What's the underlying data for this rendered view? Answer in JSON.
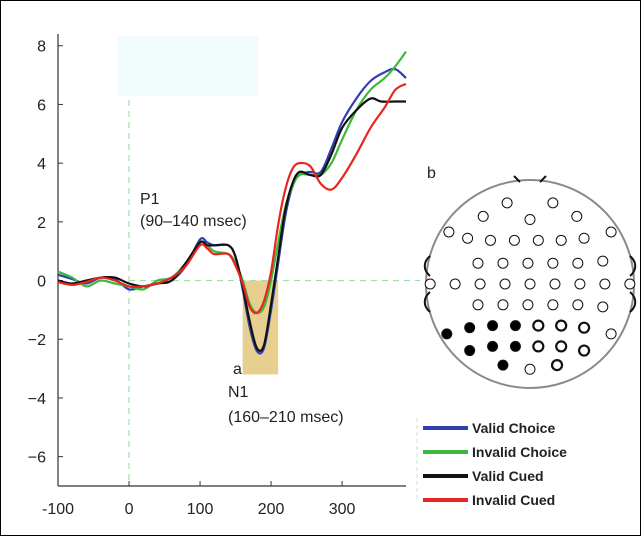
{
  "chart_data": {
    "type": "line",
    "xlim": [
      -100,
      390
    ],
    "ylim": [
      -7,
      8.4
    ],
    "x_ticks": [
      "-100",
      "0",
      "100",
      "200",
      "300"
    ],
    "y_ticks": [
      "8",
      "6",
      "4",
      "2",
      "0",
      "−2",
      "−4",
      "−6"
    ],
    "x_tick_values": [
      -100,
      0,
      100,
      200,
      300
    ],
    "y_tick_values": [
      8,
      6,
      4,
      2,
      0,
      -2,
      -4,
      -6
    ],
    "grid": false,
    "legend_position": "bottom-right",
    "annotations": {
      "p1_label": "P1",
      "p1_window": "(90–140 msec)",
      "n1_label": "N1",
      "n1_window": "(160–210 msec)",
      "panel_a": "a",
      "panel_b": "b"
    },
    "highlight_window": {
      "x": [
        160,
        210
      ],
      "y": [
        -3.2,
        0
      ],
      "color": "#e7cf8f"
    },
    "series": [
      {
        "name": "Valid Choice",
        "color": "#2f3fb0",
        "points": [
          [
            -100,
            0.2
          ],
          [
            -80,
            0.05
          ],
          [
            -60,
            -0.1
          ],
          [
            -40,
            0.1
          ],
          [
            -20,
            0.05
          ],
          [
            0,
            -0.3
          ],
          [
            20,
            -0.2
          ],
          [
            40,
            -0.1
          ],
          [
            60,
            0.0
          ],
          [
            80,
            0.5
          ],
          [
            100,
            1.4
          ],
          [
            110,
            1.3
          ],
          [
            120,
            1.2
          ],
          [
            140,
            1.2
          ],
          [
            150,
            0.8
          ],
          [
            160,
            -0.3
          ],
          [
            170,
            -1.6
          ],
          [
            180,
            -2.4
          ],
          [
            190,
            -2.3
          ],
          [
            200,
            -1.0
          ],
          [
            210,
            0.6
          ],
          [
            220,
            2.2
          ],
          [
            230,
            3.2
          ],
          [
            240,
            3.6
          ],
          [
            255,
            3.7
          ],
          [
            270,
            3.7
          ],
          [
            285,
            4.5
          ],
          [
            300,
            5.4
          ],
          [
            320,
            6.2
          ],
          [
            340,
            6.8
          ],
          [
            360,
            7.1
          ],
          [
            375,
            7.2
          ],
          [
            390,
            6.9
          ]
        ]
      },
      {
        "name": "Invalid Choice",
        "color": "#3cb83c",
        "points": [
          [
            -100,
            0.3
          ],
          [
            -80,
            0.1
          ],
          [
            -60,
            -0.2
          ],
          [
            -40,
            0.0
          ],
          [
            -20,
            -0.1
          ],
          [
            0,
            -0.2
          ],
          [
            20,
            -0.3
          ],
          [
            40,
            0.0
          ],
          [
            60,
            0.1
          ],
          [
            80,
            0.6
          ],
          [
            100,
            1.3
          ],
          [
            110,
            1.2
          ],
          [
            120,
            1.0
          ],
          [
            140,
            0.9
          ],
          [
            150,
            0.6
          ],
          [
            160,
            0.0
          ],
          [
            170,
            -0.8
          ],
          [
            180,
            -1.1
          ],
          [
            190,
            -0.9
          ],
          [
            200,
            0.0
          ],
          [
            210,
            1.3
          ],
          [
            220,
            2.5
          ],
          [
            230,
            3.2
          ],
          [
            240,
            3.6
          ],
          [
            255,
            3.6
          ],
          [
            270,
            3.6
          ],
          [
            285,
            4.0
          ],
          [
            300,
            4.8
          ],
          [
            320,
            5.8
          ],
          [
            340,
            6.5
          ],
          [
            360,
            6.9
          ],
          [
            375,
            7.3
          ],
          [
            390,
            7.8
          ]
        ]
      },
      {
        "name": "Valid Cued",
        "color": "#111111",
        "points": [
          [
            -100,
            0.0
          ],
          [
            -80,
            -0.1
          ],
          [
            -60,
            0.0
          ],
          [
            -40,
            0.1
          ],
          [
            -20,
            0.1
          ],
          [
            0,
            -0.1
          ],
          [
            20,
            -0.2
          ],
          [
            40,
            -0.1
          ],
          [
            60,
            0.0
          ],
          [
            80,
            0.6
          ],
          [
            100,
            1.3
          ],
          [
            110,
            1.2
          ],
          [
            120,
            1.2
          ],
          [
            140,
            1.2
          ],
          [
            150,
            0.8
          ],
          [
            160,
            -0.2
          ],
          [
            170,
            -1.4
          ],
          [
            180,
            -2.3
          ],
          [
            190,
            -2.2
          ],
          [
            200,
            -0.8
          ],
          [
            210,
            0.8
          ],
          [
            220,
            2.4
          ],
          [
            230,
            3.3
          ],
          [
            240,
            3.7
          ],
          [
            255,
            3.6
          ],
          [
            270,
            3.6
          ],
          [
            285,
            4.3
          ],
          [
            300,
            5.2
          ],
          [
            320,
            5.8
          ],
          [
            340,
            6.2
          ],
          [
            355,
            6.1
          ],
          [
            375,
            6.1
          ],
          [
            390,
            6.1
          ]
        ]
      },
      {
        "name": "Invalid Cued",
        "color": "#e8251e",
        "points": [
          [
            -100,
            -0.05
          ],
          [
            -80,
            -0.15
          ],
          [
            -60,
            -0.05
          ],
          [
            -40,
            0.1
          ],
          [
            -20,
            0.0
          ],
          [
            0,
            -0.2
          ],
          [
            20,
            -0.2
          ],
          [
            40,
            -0.1
          ],
          [
            60,
            0.1
          ],
          [
            80,
            0.5
          ],
          [
            100,
            1.2
          ],
          [
            110,
            1.1
          ],
          [
            120,
            0.9
          ],
          [
            140,
            0.9
          ],
          [
            150,
            0.5
          ],
          [
            160,
            -0.1
          ],
          [
            170,
            -0.9
          ],
          [
            180,
            -1.1
          ],
          [
            190,
            -0.7
          ],
          [
            200,
            0.3
          ],
          [
            210,
            1.9
          ],
          [
            220,
            3.1
          ],
          [
            230,
            3.8
          ],
          [
            240,
            4.0
          ],
          [
            255,
            3.9
          ],
          [
            270,
            3.3
          ],
          [
            285,
            3.1
          ],
          [
            300,
            3.5
          ],
          [
            320,
            4.3
          ],
          [
            340,
            5.2
          ],
          [
            360,
            5.9
          ],
          [
            375,
            6.5
          ],
          [
            390,
            6.7
          ]
        ]
      }
    ],
    "electrode_map": {
      "filled_color": "#000000",
      "open_color": "#ffffff",
      "electrodes": [
        {
          "pos": [
            -0.22,
            0.78
          ],
          "filled": false,
          "bold": false
        },
        {
          "pos": [
            0.22,
            0.78
          ],
          "filled": false,
          "bold": false
        },
        {
          "pos": [
            -0.45,
            0.65
          ],
          "filled": false,
          "bold": false
        },
        {
          "pos": [
            0.0,
            0.62
          ],
          "filled": false,
          "bold": false
        },
        {
          "pos": [
            0.45,
            0.65
          ],
          "filled": false,
          "bold": false
        },
        {
          "pos": [
            -0.78,
            0.5
          ],
          "filled": false,
          "bold": false
        },
        {
          "pos": [
            -0.6,
            0.44
          ],
          "filled": false,
          "bold": false
        },
        {
          "pos": [
            -0.38,
            0.42
          ],
          "filled": false,
          "bold": false
        },
        {
          "pos": [
            -0.15,
            0.42
          ],
          "filled": false,
          "bold": false
        },
        {
          "pos": [
            0.08,
            0.42
          ],
          "filled": false,
          "bold": false
        },
        {
          "pos": [
            0.3,
            0.42
          ],
          "filled": false,
          "bold": false
        },
        {
          "pos": [
            0.52,
            0.44
          ],
          "filled": false,
          "bold": false
        },
        {
          "pos": [
            0.78,
            0.5
          ],
          "filled": false,
          "bold": false
        },
        {
          "pos": [
            -0.5,
            0.2
          ],
          "filled": false,
          "bold": false
        },
        {
          "pos": [
            -0.26,
            0.2
          ],
          "filled": false,
          "bold": false
        },
        {
          "pos": [
            -0.02,
            0.2
          ],
          "filled": false,
          "bold": false
        },
        {
          "pos": [
            0.22,
            0.2
          ],
          "filled": false,
          "bold": false
        },
        {
          "pos": [
            0.46,
            0.2
          ],
          "filled": false,
          "bold": false
        },
        {
          "pos": [
            0.7,
            0.22
          ],
          "filled": false,
          "bold": false
        },
        {
          "pos": [
            -0.96,
            0.0
          ],
          "filled": false,
          "bold": false
        },
        {
          "pos": [
            -0.72,
            0.0
          ],
          "filled": false,
          "bold": false
        },
        {
          "pos": [
            -0.48,
            0.0
          ],
          "filled": false,
          "bold": false
        },
        {
          "pos": [
            -0.24,
            0.0
          ],
          "filled": false,
          "bold": false
        },
        {
          "pos": [
            0.0,
            0.0
          ],
          "filled": false,
          "bold": false
        },
        {
          "pos": [
            0.24,
            0.0
          ],
          "filled": false,
          "bold": false
        },
        {
          "pos": [
            0.48,
            0.0
          ],
          "filled": false,
          "bold": false
        },
        {
          "pos": [
            0.72,
            0.0
          ],
          "filled": false,
          "bold": false
        },
        {
          "pos": [
            0.96,
            0.0
          ],
          "filled": false,
          "bold": false
        },
        {
          "pos": [
            -0.5,
            -0.2
          ],
          "filled": false,
          "bold": false
        },
        {
          "pos": [
            -0.26,
            -0.2
          ],
          "filled": false,
          "bold": false
        },
        {
          "pos": [
            -0.02,
            -0.2
          ],
          "filled": false,
          "bold": false
        },
        {
          "pos": [
            0.22,
            -0.2
          ],
          "filled": false,
          "bold": false
        },
        {
          "pos": [
            0.46,
            -0.2
          ],
          "filled": false,
          "bold": false
        },
        {
          "pos": [
            0.7,
            -0.22
          ],
          "filled": false,
          "bold": false
        },
        {
          "pos": [
            -0.8,
            -0.48
          ],
          "filled": true,
          "bold": false
        },
        {
          "pos": [
            -0.58,
            -0.42
          ],
          "filled": true,
          "bold": false
        },
        {
          "pos": [
            -0.36,
            -0.4
          ],
          "filled": true,
          "bold": false
        },
        {
          "pos": [
            -0.14,
            -0.4
          ],
          "filled": true,
          "bold": false
        },
        {
          "pos": [
            0.08,
            -0.4
          ],
          "filled": false,
          "bold": true
        },
        {
          "pos": [
            0.3,
            -0.4
          ],
          "filled": false,
          "bold": true
        },
        {
          "pos": [
            0.52,
            -0.42
          ],
          "filled": false,
          "bold": true
        },
        {
          "pos": [
            0.78,
            -0.48
          ],
          "filled": false,
          "bold": false
        },
        {
          "pos": [
            -0.58,
            -0.64
          ],
          "filled": true,
          "bold": false
        },
        {
          "pos": [
            -0.36,
            -0.6
          ],
          "filled": true,
          "bold": false
        },
        {
          "pos": [
            -0.14,
            -0.6
          ],
          "filled": true,
          "bold": false
        },
        {
          "pos": [
            0.08,
            -0.6
          ],
          "filled": false,
          "bold": true
        },
        {
          "pos": [
            0.3,
            -0.6
          ],
          "filled": false,
          "bold": true
        },
        {
          "pos": [
            0.52,
            -0.64
          ],
          "filled": false,
          "bold": true
        },
        {
          "pos": [
            -0.26,
            -0.78
          ],
          "filled": true,
          "bold": false
        },
        {
          "pos": [
            0.0,
            -0.82
          ],
          "filled": false,
          "bold": false
        },
        {
          "pos": [
            0.26,
            -0.78
          ],
          "filled": false,
          "bold": true
        }
      ]
    }
  }
}
